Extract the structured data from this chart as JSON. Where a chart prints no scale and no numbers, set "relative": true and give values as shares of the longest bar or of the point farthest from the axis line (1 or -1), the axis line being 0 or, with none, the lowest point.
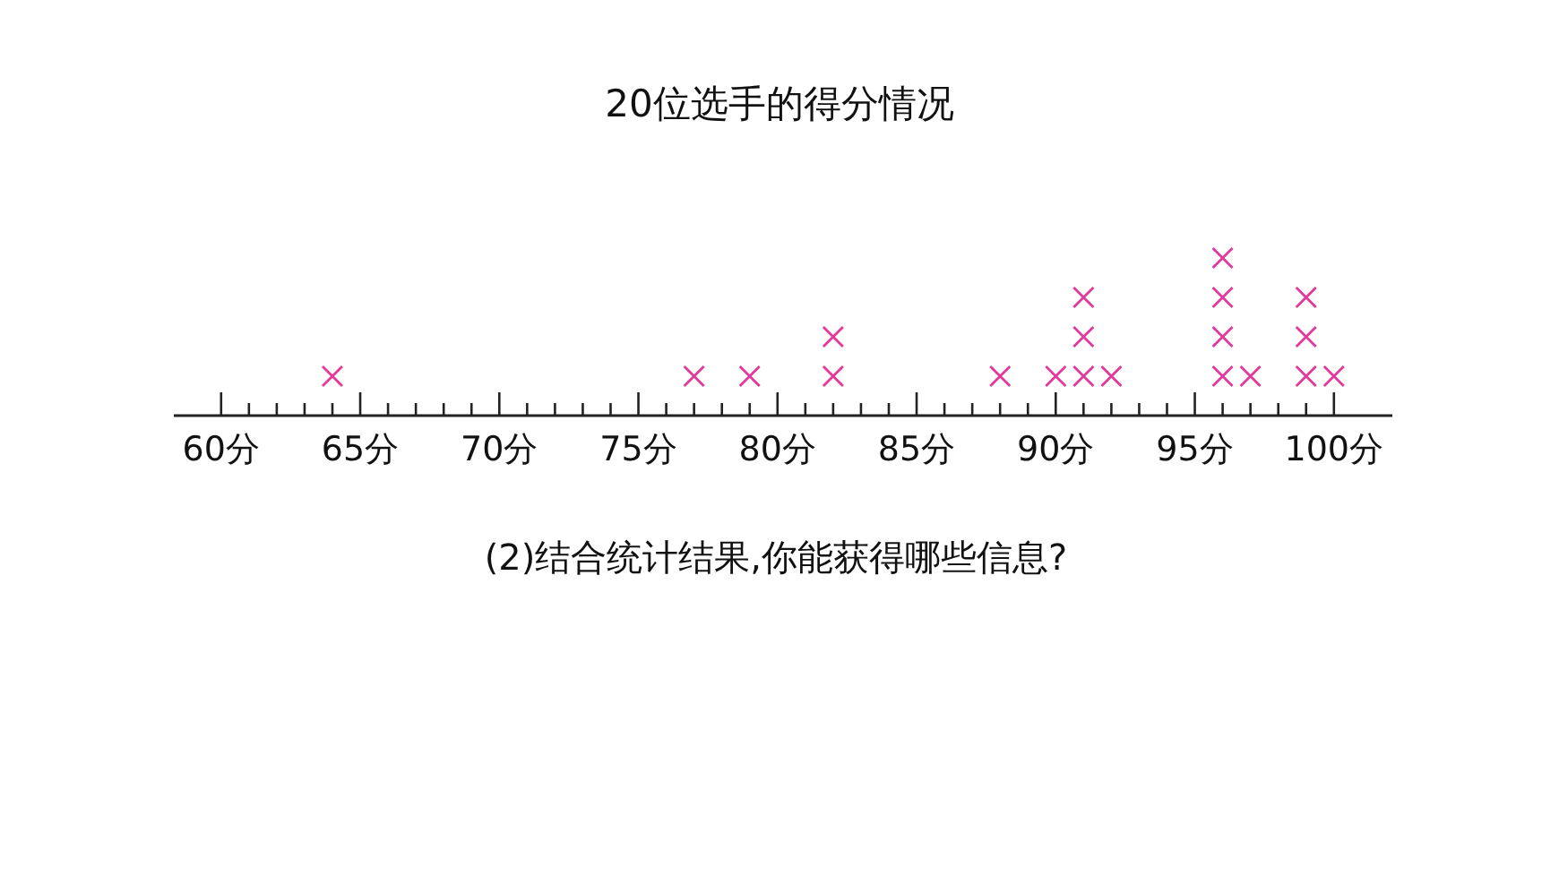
{
  "chart_data": {
    "type": "scatter",
    "title": "20位选手的得分情况",
    "x": [
      64,
      77,
      79,
      82,
      82,
      88,
      90,
      91,
      91,
      91,
      92,
      96,
      96,
      96,
      96,
      97,
      99,
      99,
      99,
      100
    ],
    "values": [
      0.25,
      0.25,
      0.25,
      0.25,
      0.5,
      0.25,
      0.25,
      0.25,
      0.5,
      0.75,
      0.25,
      0.25,
      0.5,
      0.75,
      1,
      0.25,
      0.25,
      0.5,
      0.75,
      0.25
    ],
    "relative": true,
    "color": "#e4399b",
    "marker": "cross",
    "tick_labels": "x",
    "xlim": [
      58.3,
      102.1
    ],
    "xticks": [
      {
        "value": 60,
        "label": "60分"
      },
      {
        "value": 61,
        "label": null
      },
      {
        "value": 62,
        "label": null
      },
      {
        "value": 63,
        "label": null
      },
      {
        "value": 64,
        "label": null
      },
      {
        "value": 65,
        "label": "65分"
      },
      {
        "value": 66,
        "label": null
      },
      {
        "value": 67,
        "label": null
      },
      {
        "value": 68,
        "label": null
      },
      {
        "value": 69,
        "label": null
      },
      {
        "value": 70,
        "label": "70分"
      },
      {
        "value": 71,
        "label": null
      },
      {
        "value": 72,
        "label": null
      },
      {
        "value": 73,
        "label": null
      },
      {
        "value": 74,
        "label": null
      },
      {
        "value": 75,
        "label": "75分"
      },
      {
        "value": 76,
        "label": null
      },
      {
        "value": 77,
        "label": null
      },
      {
        "value": 78,
        "label": null
      },
      {
        "value": 79,
        "label": null
      },
      {
        "value": 80,
        "label": "80分"
      },
      {
        "value": 81,
        "label": null
      },
      {
        "value": 82,
        "label": null
      },
      {
        "value": 83,
        "label": null
      },
      {
        "value": 84,
        "label": null
      },
      {
        "value": 85,
        "label": "85分"
      },
      {
        "value": 86,
        "label": null
      },
      {
        "value": 87,
        "label": null
      },
      {
        "value": 88,
        "label": null
      },
      {
        "value": 89,
        "label": null
      },
      {
        "value": 90,
        "label": "90分"
      },
      {
        "value": 91,
        "label": null
      },
      {
        "value": 92,
        "label": null
      },
      {
        "value": 93,
        "label": null
      },
      {
        "value": 94,
        "label": null
      },
      {
        "value": 95,
        "label": "95分"
      },
      {
        "value": 96,
        "label": null
      },
      {
        "value": 97,
        "label": null
      },
      {
        "value": 98,
        "label": null
      },
      {
        "value": 99,
        "label": null
      },
      {
        "value": 100,
        "label": "100分"
      }
    ],
    "annotations": [
      "(2)结合统计结果,你能获得哪些信息?"
    ]
  }
}
